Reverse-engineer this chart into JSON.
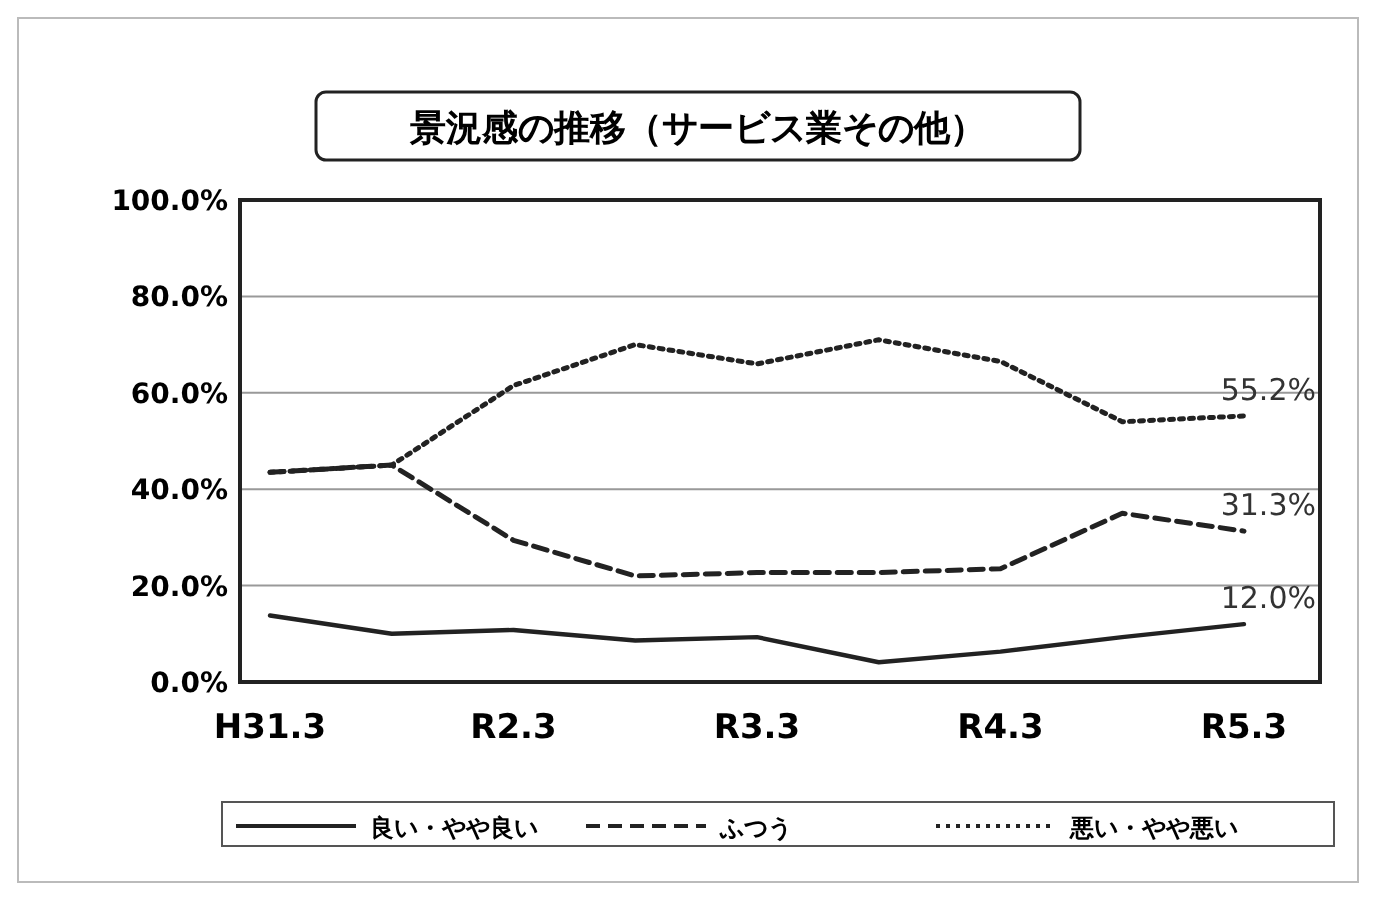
{
  "chart_data": {
    "type": "line",
    "title": "景況感の推移（サービス業その他）",
    "categories": [
      "H31.3",
      null,
      "R2.3",
      null,
      "R3.3",
      null,
      "R4.3",
      null,
      "R5.3"
    ],
    "series": [
      {
        "name": "良い・やや良い",
        "color": "#222222",
        "line_style": "solid",
        "values": [
          13.8,
          10,
          10.8,
          8.6,
          9.3,
          4.1,
          6.3,
          9.3,
          12.0
        ],
        "value_labels": [
          null,
          null,
          null,
          null,
          null,
          null,
          null,
          null,
          "12.0%"
        ]
      },
      {
        "name": "ふつう",
        "color": "#222222",
        "line_style": "dashed",
        "values": [
          43.5,
          45,
          29.4,
          22,
          22.7,
          22.7,
          23.5,
          35,
          31.3
        ],
        "value_labels": [
          null,
          null,
          null,
          null,
          null,
          null,
          null,
          null,
          "31.3%"
        ]
      },
      {
        "name": "悪い・やや悪い",
        "color": "#222222",
        "line_style": "dotted",
        "values": [
          43.5,
          45,
          61.5,
          70,
          66,
          71,
          66.5,
          54,
          55.2
        ],
        "value_labels": [
          null,
          null,
          null,
          null,
          null,
          null,
          null,
          null,
          "55.2%"
        ]
      }
    ],
    "ylim": [
      0,
      100
    ],
    "yticks": [
      {
        "value": 0,
        "label": "0.0%"
      },
      {
        "value": 20,
        "label": "20.0%"
      },
      {
        "value": 40,
        "label": "40.0%"
      },
      {
        "value": 60,
        "label": "60.0%"
      },
      {
        "value": 80,
        "label": "80.0%"
      },
      {
        "value": 100,
        "label": "100.0%"
      }
    ],
    "grid": "y",
    "legend": "bottom",
    "marker": "none"
  }
}
